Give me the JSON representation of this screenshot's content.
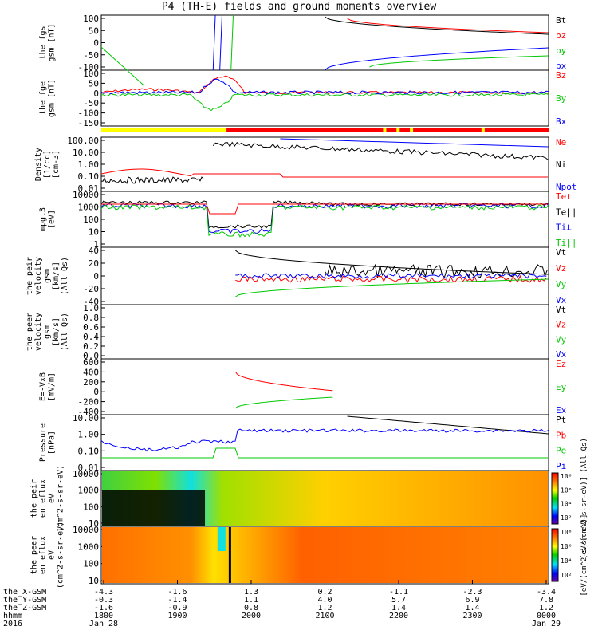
{
  "title": "P4 (TH-E) fields and ground moments overview",
  "colors": {
    "black": "#000000",
    "red": "#ff0000",
    "green": "#00c800",
    "blue": "#0000ff",
    "yellow": "#ffff00"
  },
  "chart_data": [
    {
      "type": "line",
      "ylabel": "the fgs gsm [nT]",
      "yticks": [
        "100",
        "50",
        "0",
        "-50",
        "-100"
      ],
      "ylim": [
        -100,
        100
      ],
      "legend": [
        {
          "name": "Bt",
          "color": "#000000"
        },
        {
          "name": "bz",
          "color": "#ff0000"
        },
        {
          "name": "by",
          "color": "#00c800"
        },
        {
          "name": "bx",
          "color": "#0000ff"
        }
      ]
    },
    {
      "type": "line",
      "ylabel": "the fge gsm [nT]",
      "yticks": [
        "100",
        "50",
        "0",
        "-50",
        "-100",
        "-150"
      ],
      "ylim": [
        -180,
        100
      ],
      "legend": [
        {
          "name": "Bz",
          "color": "#ff0000"
        },
        {
          "name": "By",
          "color": "#00c800"
        },
        {
          "name": "Bx",
          "color": "#0000ff"
        }
      ]
    },
    {
      "type": "line",
      "ylabel": "Density [1/cc] [cm-3]",
      "yticks": [
        "100.00",
        "10.00",
        "1.00",
        "0.10",
        "0.01"
      ],
      "scale": "log",
      "legend": [
        {
          "name": "Ne",
          "color": "#ff0000"
        },
        {
          "name": "Ni",
          "color": "#000000"
        },
        {
          "name": "Npot",
          "color": "#0000ff"
        }
      ]
    },
    {
      "type": "line",
      "ylabel": "mpgt3 [eV]",
      "yticks": [
        "10000",
        "1000",
        "100",
        "10",
        "1"
      ],
      "scale": "log",
      "legend": [
        {
          "name": "Te⊥",
          "color": "#ff0000"
        },
        {
          "name": "Te||",
          "color": "#000000"
        },
        {
          "name": "Ti⊥",
          "color": "#0000ff"
        },
        {
          "name": "Ti||",
          "color": "#00c800"
        }
      ]
    },
    {
      "type": "line",
      "ylabel": "the peir velocity gsm [km/s] (All Qs)",
      "yticks": [
        "40",
        "20",
        "0",
        "-20",
        "-40"
      ],
      "ylim": [
        -40,
        40
      ],
      "legend": [
        {
          "name": "Vt",
          "color": "#000000"
        },
        {
          "name": "Vz",
          "color": "#ff0000"
        },
        {
          "name": "Vy",
          "color": "#00c800"
        },
        {
          "name": "Vx",
          "color": "#0000ff"
        }
      ]
    },
    {
      "type": "line",
      "ylabel": "the peer velocity gsm [km/s] (All Qs)",
      "yticks": [
        "1.0",
        "0.8",
        "0.6",
        "0.4",
        "0.2",
        "0.0"
      ],
      "ylim": [
        0,
        1
      ],
      "legend": [
        {
          "name": "Vt",
          "color": "#000000"
        },
        {
          "name": "Vz",
          "color": "#ff0000"
        },
        {
          "name": "Vy",
          "color": "#00c800"
        },
        {
          "name": "Vx",
          "color": "#0000ff"
        }
      ]
    },
    {
      "type": "line",
      "ylabel": "E=-VxB [mV/m]",
      "yticks": [
        "600",
        "400",
        "200",
        "0",
        "-200",
        "-400"
      ],
      "ylim": [
        -400,
        600
      ],
      "legend": [
        {
          "name": "Ez",
          "color": "#ff0000"
        },
        {
          "name": "Ey",
          "color": "#00c800"
        },
        {
          "name": "Ex",
          "color": "#0000ff"
        }
      ]
    },
    {
      "type": "line",
      "ylabel": "Pressure [nPa]",
      "yticks": [
        "10.00",
        "1.00",
        "0.10",
        "0.01"
      ],
      "scale": "log",
      "legend": [
        {
          "name": "Pt",
          "color": "#000000"
        },
        {
          "name": "Pb",
          "color": "#ff0000"
        },
        {
          "name": "Pe",
          "color": "#00c800"
        },
        {
          "name": "Pi",
          "color": "#0000ff"
        }
      ]
    },
    {
      "type": "heatmap",
      "ylabel": "the peir en eflux eV (cm^2-s-sr-eV)",
      "yticks": [
        "10000",
        "1000",
        "100",
        "10"
      ],
      "colorbar_label": "[eV/(cm^2-s-sr-eV)] (All Qs)",
      "colorbar_ticks": [
        "10⁸",
        "10⁶",
        "10⁴",
        "10²"
      ]
    },
    {
      "type": "heatmap",
      "ylabel": "the peer en eflux eV (cm^2-s-sr-eV)",
      "yticks": [
        "10000",
        "1000",
        "100",
        "10"
      ],
      "colorbar_label": "[eV/(cm^2-s-sr-eV)]",
      "colorbar_ticks": [
        "10⁸",
        "10⁶",
        "10⁴",
        "10²"
      ]
    }
  ],
  "xaxis": {
    "rows": [
      {
        "label": "the_X-GSM",
        "values": [
          "-4.3",
          "-1.6",
          "1.3",
          "0.2",
          "-1.1",
          "-2.3",
          "-3.4"
        ]
      },
      {
        "label": "the_Y-GSM",
        "values": [
          "-0.3",
          "-1.4",
          "1.1",
          "4.0",
          "5.7",
          "6.9",
          "7.8"
        ]
      },
      {
        "label": "the_Z-GSM",
        "values": [
          "-1.6",
          "-0.9",
          "0.8",
          "1.2",
          "1.4",
          "1.4",
          "1.2"
        ]
      },
      {
        "label": "hhmm",
        "values": [
          "1800",
          "1900",
          "2000",
          "2100",
          "2200",
          "2300",
          "0000"
        ]
      },
      {
        "label": "2016",
        "values": [
          "Jan 28",
          "",
          "",
          "",
          "",
          "",
          "Jan 29"
        ]
      }
    ]
  }
}
